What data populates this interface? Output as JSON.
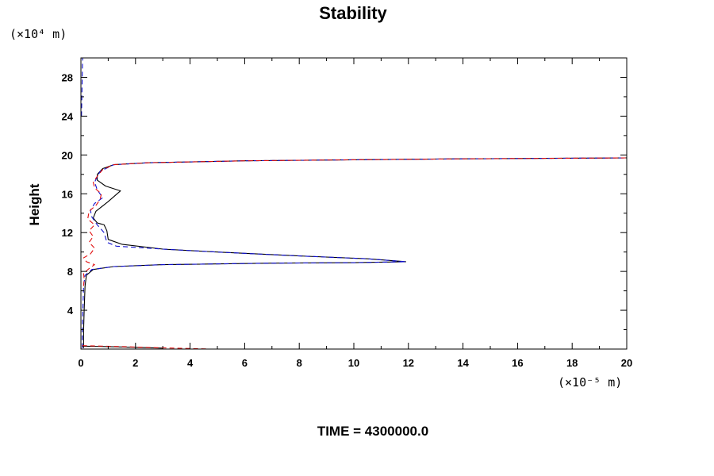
{
  "chart_data": {
    "type": "line",
    "title": "Stability",
    "ylabel": "Height",
    "y_unit_label": "(×10⁴ m)",
    "x_unit_label": "(×10⁻⁵ m)",
    "footer": "TIME = 4300000.0",
    "xlim": [
      0,
      20
    ],
    "ylim": [
      0,
      30
    ],
    "x_ticks": [
      0,
      2,
      4,
      6,
      8,
      10,
      12,
      14,
      16,
      18,
      20
    ],
    "y_ticks": [
      4,
      8,
      12,
      16,
      20,
      24,
      28
    ],
    "x_tick_labels": [
      "0",
      "2",
      "4",
      "6",
      "8",
      "10",
      "12",
      "14",
      "16",
      "18",
      "20"
    ],
    "y_tick_labels": [
      "4",
      "8",
      "12",
      "16",
      "20",
      "24",
      "28"
    ],
    "grid": false,
    "series": [
      {
        "color": "#000000",
        "dash": "solid",
        "points": [
          [
            0.1,
            0.1
          ],
          [
            0.1,
            2
          ],
          [
            0.12,
            4
          ],
          [
            0.15,
            6.5
          ],
          [
            0.2,
            7.6
          ],
          [
            0.45,
            8.2
          ],
          [
            1.2,
            8.5
          ],
          [
            3,
            8.7
          ],
          [
            7,
            8.85
          ],
          [
            10,
            8.9
          ],
          [
            11.9,
            9.0
          ],
          [
            10.5,
            9.3
          ],
          [
            8,
            9.6
          ],
          [
            5,
            10
          ],
          [
            3,
            10.3
          ],
          [
            1.5,
            10.8
          ],
          [
            1.0,
            11.3
          ],
          [
            0.95,
            12.2
          ],
          [
            0.85,
            12.8
          ],
          [
            0.6,
            13.0
          ],
          [
            0.45,
            13.5
          ],
          [
            0.55,
            14.2
          ],
          [
            1.0,
            15.2
          ],
          [
            1.45,
            16.3
          ],
          [
            0.9,
            16.8
          ],
          [
            0.6,
            17.4
          ],
          [
            0.6,
            18.0
          ],
          [
            0.8,
            18.6
          ],
          [
            1.2,
            19.0
          ],
          [
            2.5,
            19.2
          ],
          [
            6,
            19.4
          ],
          [
            10,
            19.5
          ],
          [
            14,
            19.6
          ],
          [
            17,
            19.65
          ],
          [
            20,
            19.7
          ]
        ]
      },
      {
        "color": "#1010d0",
        "dash": "dashed",
        "points": [
          [
            0.05,
            0.1
          ],
          [
            0.05,
            2
          ],
          [
            0.07,
            4
          ],
          [
            0.1,
            6.5
          ],
          [
            0.15,
            7.6
          ],
          [
            0.4,
            8.2
          ],
          [
            1.2,
            8.5
          ],
          [
            3,
            8.7
          ],
          [
            7,
            8.85
          ],
          [
            10,
            8.9
          ],
          [
            11.9,
            9.0
          ],
          [
            10.5,
            9.3
          ],
          [
            8,
            9.6
          ],
          [
            5,
            10
          ],
          [
            3,
            10.3
          ],
          [
            1.3,
            10.6
          ],
          [
            0.95,
            11.0
          ],
          [
            0.85,
            12.0
          ],
          [
            0.6,
            12.8
          ],
          [
            0.4,
            13.6
          ],
          [
            0.35,
            14.3
          ],
          [
            0.5,
            15.0
          ],
          [
            0.8,
            15.6
          ],
          [
            0.6,
            16.4
          ],
          [
            0.5,
            17.2
          ],
          [
            0.7,
            18.3
          ],
          [
            1.2,
            19.0
          ],
          [
            2.5,
            19.2
          ],
          [
            6,
            19.4
          ],
          [
            10,
            19.5
          ],
          [
            14,
            19.6
          ],
          [
            17,
            19.65
          ],
          [
            20,
            19.7
          ]
        ]
      },
      {
        "color": "#e01010",
        "dash": "dashed",
        "points": [
          [
            0.1,
            6.5
          ],
          [
            0.12,
            7.2
          ],
          [
            0.1,
            7.8
          ],
          [
            0.3,
            8.3
          ],
          [
            0.5,
            8.7
          ],
          [
            0.2,
            9.0
          ],
          [
            0.1,
            9.4
          ],
          [
            0.35,
            9.8
          ],
          [
            0.5,
            10.4
          ],
          [
            0.3,
            11.0
          ],
          [
            0.45,
            11.6
          ],
          [
            0.3,
            12.2
          ],
          [
            0.5,
            12.8
          ],
          [
            0.25,
            13.4
          ],
          [
            0.3,
            14.2
          ],
          [
            0.55,
            14.8
          ],
          [
            0.7,
            15.4
          ],
          [
            0.75,
            16.0
          ],
          [
            0.5,
            16.6
          ],
          [
            0.45,
            17.2
          ],
          [
            0.6,
            17.8
          ],
          [
            0.8,
            18.5
          ],
          [
            1.2,
            19.0
          ],
          [
            2.5,
            19.2
          ],
          [
            6,
            19.4
          ],
          [
            10,
            19.5
          ],
          [
            14,
            19.6
          ],
          [
            17,
            19.65
          ],
          [
            20,
            19.7
          ]
        ]
      },
      {
        "color": "#1010d0",
        "dash": "dashed",
        "points": [
          [
            0.02,
            24
          ],
          [
            0.04,
            27
          ],
          [
            0.06,
            30
          ]
        ]
      },
      {
        "color": "#000000",
        "dash": "solid",
        "points": [
          [
            0.05,
            0.3
          ],
          [
            1,
            0.25
          ],
          [
            2,
            0.18
          ],
          [
            3,
            0.1
          ]
        ]
      },
      {
        "color": "#e01010",
        "dash": "dashed",
        "points": [
          [
            0.05,
            0.35
          ],
          [
            1.5,
            0.25
          ],
          [
            3,
            0.12
          ],
          [
            4.6,
            0.02
          ]
        ]
      }
    ]
  }
}
